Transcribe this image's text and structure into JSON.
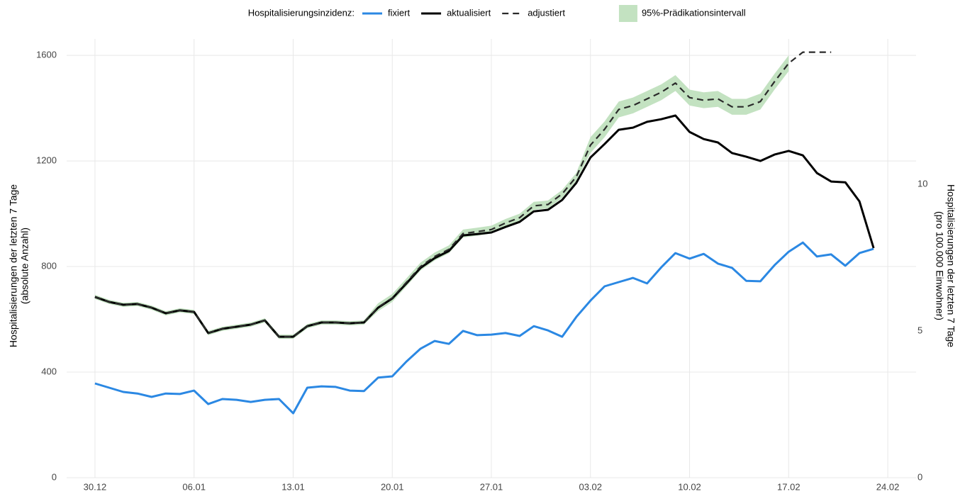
{
  "chart_data": {
    "type": "line",
    "legend_title": "Hospitalisierungsinzidenz:",
    "y_label": [
      "Hospitalisierungen der letzten 7 Tage",
      "(absolute Anzahl)"
    ],
    "y2_label": [
      "Hospitalisierungen der letzten 7 Tage",
      "(pro 100.000 Einwohner)"
    ],
    "x": [
      "30.12",
      "31.12",
      "01.01",
      "02.01",
      "03.01",
      "04.01",
      "05.01",
      "06.01",
      "07.01",
      "08.01",
      "09.01",
      "10.01",
      "11.01",
      "12.01",
      "13.01",
      "14.01",
      "15.01",
      "16.01",
      "17.01",
      "18.01",
      "19.01",
      "20.01",
      "21.01",
      "22.01",
      "23.01",
      "24.01",
      "25.01",
      "26.01",
      "27.01",
      "28.01",
      "29.01",
      "30.01",
      "31.01",
      "01.02",
      "02.02",
      "03.02",
      "04.02",
      "05.02",
      "06.02",
      "07.02",
      "08.02",
      "09.02",
      "10.02",
      "11.02",
      "12.02",
      "13.02",
      "14.02",
      "15.02",
      "16.02",
      "17.02",
      "18.02",
      "19.02",
      "20.02",
      "21.02",
      "22.02",
      "23.02"
    ],
    "xlim": [
      "28.12",
      "26.02"
    ],
    "xticks": [
      "30.12",
      "06.01",
      "13.01",
      "20.01",
      "27.01",
      "03.02",
      "10.02",
      "17.02",
      "24.02"
    ],
    "ylim": [
      0,
      1662
    ],
    "yticks": [
      0,
      400,
      800,
      1200,
      1600
    ],
    "y2lim": [
      0,
      14.96
    ],
    "y2ticks": [
      0,
      5,
      10
    ],
    "grid": true,
    "series": [
      {
        "name": "fixiert",
        "color": "#2b88e3",
        "values": [
          357,
          341,
          325,
          319,
          306,
          319,
          317,
          330,
          279,
          298,
          295,
          287,
          295,
          298,
          244,
          341,
          346,
          344,
          330,
          328,
          379,
          384,
          440,
          489,
          518,
          507,
          556,
          540,
          542,
          548,
          537,
          574,
          558,
          534,
          609,
          671,
          725,
          741,
          757,
          736,
          797,
          851,
          830,
          848,
          811,
          795,
          746,
          744,
          805,
          856,
          891,
          838,
          846,
          803,
          851,
          867
        ]
      },
      {
        "name": "aktualisiert",
        "color": "#000000",
        "values": [
          685,
          666,
          655,
          658,
          644,
          623,
          634,
          628,
          548,
          564,
          572,
          580,
          596,
          534,
          534,
          574,
          588,
          588,
          585,
          588,
          644,
          679,
          736,
          795,
          832,
          859,
          918,
          923,
          929,
          950,
          969,
          1009,
          1015,
          1052,
          1117,
          1213,
          1264,
          1318,
          1326,
          1348,
          1358,
          1372,
          1310,
          1283,
          1270,
          1230,
          1216,
          1200,
          1224,
          1238,
          1221,
          1154,
          1122,
          1119,
          1047,
          870
        ]
      },
      {
        "name": "adjustiert",
        "color": "#2a2a2a",
        "dash": true,
        "values": [
          685,
          666,
          655,
          658,
          644,
          623,
          634,
          628,
          548,
          564,
          572,
          580,
          596,
          534,
          534,
          574,
          588,
          588,
          585,
          588,
          646,
          681,
          740,
          800,
          838,
          865,
          925,
          932,
          940,
          965,
          985,
          1030,
          1035,
          1075,
          1140,
          1260,
          1320,
          1395,
          1410,
          1435,
          1460,
          1495,
          1440,
          1430,
          1435,
          1405,
          1405,
          1425,
          1500,
          1570,
          1612,
          1612,
          1612,
          null,
          null,
          null
        ]
      },
      {
        "name": "95%-Prädikationsintervall",
        "color": "#c3e2c1",
        "lower": [
          677,
          658,
          647,
          650,
          636,
          615,
          626,
          620,
          540,
          556,
          564,
          572,
          588,
          526,
          526,
          566,
          580,
          580,
          577,
          580,
          631,
          666,
          725,
          785,
          823,
          850,
          910,
          917,
          925,
          950,
          970,
          1015,
          1020,
          1060,
          1125,
          1230,
          1290,
          1365,
          1380,
          1405,
          1430,
          1465,
          1410,
          1400,
          1405,
          1375,
          1375,
          1395,
          1470,
          1540,
          null,
          null,
          null,
          null,
          null,
          null
        ],
        "upper": [
          693,
          674,
          663,
          666,
          652,
          631,
          642,
          636,
          556,
          572,
          580,
          588,
          604,
          542,
          542,
          582,
          596,
          596,
          593,
          596,
          661,
          696,
          755,
          815,
          853,
          880,
          940,
          947,
          955,
          980,
          1000,
          1045,
          1050,
          1090,
          1155,
          1290,
          1350,
          1425,
          1440,
          1465,
          1490,
          1525,
          1470,
          1460,
          1465,
          1435,
          1435,
          1455,
          1530,
          1600,
          null,
          null,
          null,
          null,
          null,
          null
        ]
      }
    ]
  }
}
